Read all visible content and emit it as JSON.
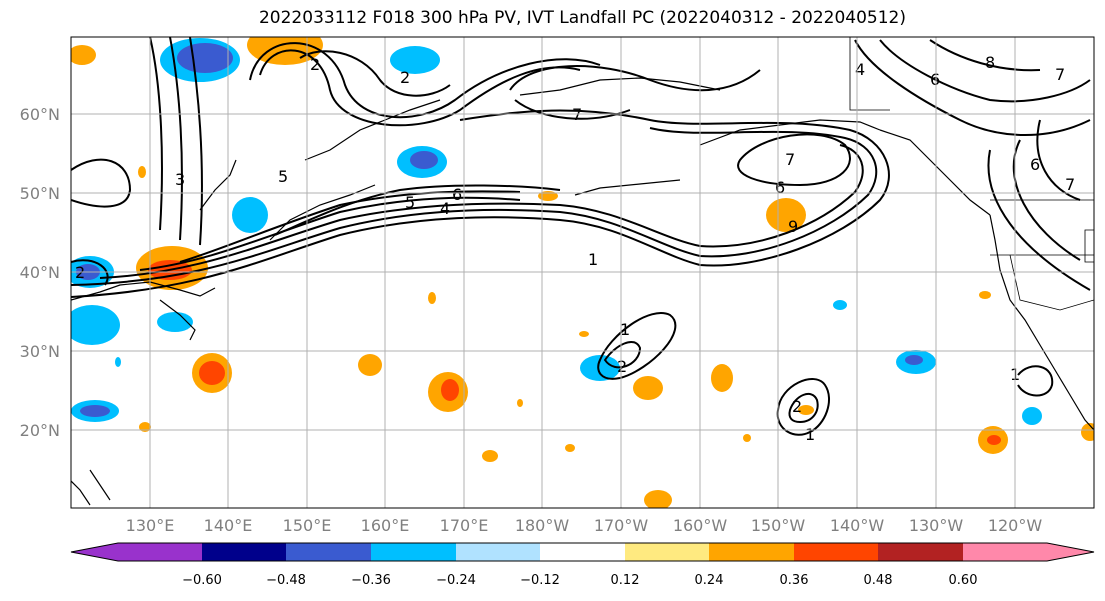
{
  "title": "2022033112 F018 300 hPa PV, IVT Landfall PC (2022040312 - 2022040512)",
  "map": {
    "lat_labels": [
      "60°N",
      "50°N",
      "40°N",
      "30°N",
      "20°N"
    ],
    "lon_labels": [
      "130°E",
      "140°E",
      "150°E",
      "160°E",
      "170°E",
      "180°W",
      "170°W",
      "160°W",
      "150°W",
      "140°W",
      "130°W",
      "120°W"
    ],
    "contour_labels": [
      "2",
      "5",
      "4",
      "6",
      "7",
      "1",
      "3",
      "8",
      "9"
    ],
    "colors": {
      "ocean": "#ffffff",
      "grid": "#b0b0b0",
      "contour": "#000000"
    }
  },
  "colorbar": {
    "ticks": [
      "−0.60",
      "−0.48",
      "−0.36",
      "−0.24",
      "−0.12",
      "0.12",
      "0.24",
      "0.36",
      "0.48",
      "0.60"
    ],
    "colors": [
      "#9932cc",
      "#00008b",
      "#3a5bd0",
      "#00bfff",
      "#b0e2ff",
      "#ffffff",
      "#ffea80",
      "#ffa500",
      "#ff4500",
      "#b22222",
      "#ff88aa"
    ]
  }
}
